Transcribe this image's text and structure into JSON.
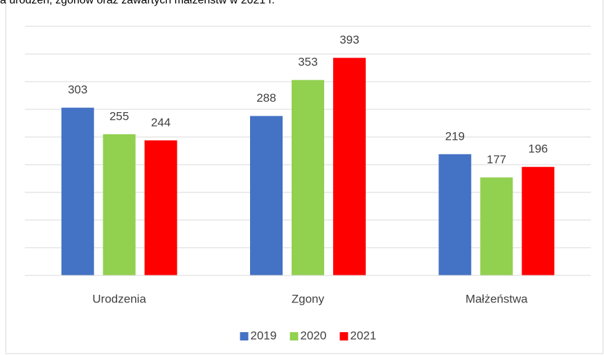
{
  "chart_data": {
    "type": "bar",
    "title": "a urodzeń, zgonów oraz zawartych małżeństw w 2021 r.",
    "categories": [
      "Urodzenia",
      "Zgony",
      "Małżeństwa"
    ],
    "series": [
      {
        "name": "2019",
        "color": "#4472c4",
        "values": [
          303,
          288,
          219
        ]
      },
      {
        "name": "2020",
        "color": "#92d050",
        "values": [
          255,
          353,
          177
        ]
      },
      {
        "name": "2021",
        "color": "#ff0000",
        "values": [
          244,
          393,
          196
        ]
      }
    ],
    "ylim": [
      0,
      450
    ],
    "yticks": [
      0,
      50,
      100,
      150,
      200,
      250,
      300,
      350,
      400,
      450
    ],
    "grid": true,
    "legend": "bottom"
  }
}
